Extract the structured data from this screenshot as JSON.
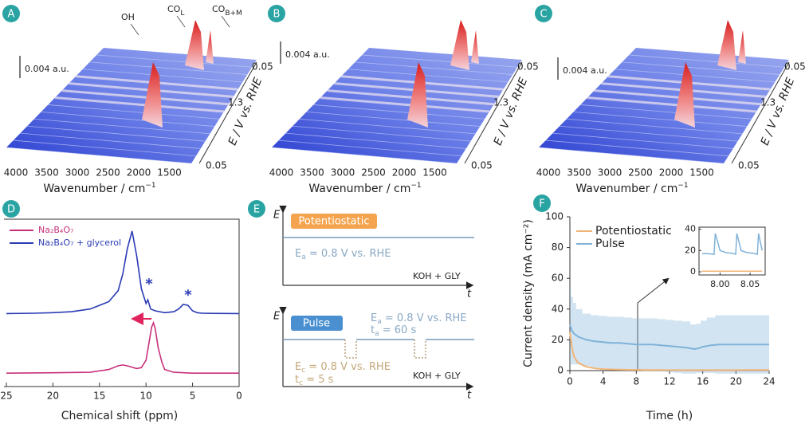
{
  "panels": [
    {
      "label": "A",
      "annotations": [
        {
          "text": "OH"
        },
        {
          "text": "CO",
          "sub": "L"
        },
        {
          "text": "CO",
          "sub": "B+M"
        }
      ],
      "scale_bar": "0.004 a.u.",
      "x_label": {
        "text": "Wavenumber / cm",
        "sup": "−1"
      },
      "xticks": [
        4000,
        3500,
        3000,
        2500,
        2000,
        1500
      ],
      "potential_label": "E / V vs. RHE",
      "potential_ticks": [
        0.05,
        1.3,
        0.05
      ]
    },
    {
      "label": "B",
      "scale_bar": "0.004 a.u.",
      "x_label": {
        "text": "Wavenumber / cm",
        "sup": "−1"
      },
      "xticks": [
        4000,
        3500,
        3000,
        2500,
        2000,
        1500
      ],
      "potential_label": "E / V vs. RHE",
      "potential_ticks": [
        0.05,
        1.3,
        0.05
      ]
    },
    {
      "label": "C",
      "scale_bar": "0.004 a.u.",
      "x_label": {
        "text": "Wavenumber / cm",
        "sup": "−1"
      },
      "xticks": [
        4000,
        3500,
        3000,
        2500,
        2000,
        1500
      ],
      "potential_label": "E / V vs. RHE",
      "potential_ticks": [
        0.05,
        1.3,
        0.05
      ]
    }
  ],
  "nmr": {
    "label": "D",
    "type": "line",
    "x_label": "Chemical shift (ppm)",
    "xlim": [
      25,
      0
    ],
    "xticks": [
      25,
      20,
      15,
      10,
      5,
      0
    ],
    "ylim": [
      0,
      100
    ],
    "series": [
      {
        "name": "Na₂B₄O₇",
        "color": "#c8307a",
        "x": [
          25,
          20,
          16,
          14,
          13,
          12.5,
          12,
          11,
          10.5,
          10,
          9.7,
          9.4,
          9.2,
          9,
          8.7,
          8.3,
          8,
          7,
          5,
          0
        ],
        "values": [
          16,
          16.2,
          16.5,
          18,
          20,
          20.5,
          20,
          18.5,
          19,
          23,
          32,
          41,
          43.5,
          40,
          30,
          22,
          18,
          16.5,
          16,
          16
        ]
      },
      {
        "name": "Na₂B₄O₇ + glycerol",
        "color": "#2b3bb5",
        "x": [
          25,
          22,
          20,
          18,
          16,
          14,
          13,
          12.5,
          12,
          11.5,
          11,
          10.5,
          10,
          9.8,
          9.5,
          9,
          8,
          7,
          6.5,
          6,
          5.5,
          5,
          4.5,
          4,
          3,
          0
        ],
        "values": [
          48.5,
          48.7,
          49,
          49.5,
          51,
          55,
          61,
          70,
          84,
          93.5,
          80,
          62,
          54,
          56,
          51,
          50,
          49,
          49.5,
          51,
          53.5,
          53,
          50,
          49,
          48.7,
          48.6,
          48.5
        ]
      }
    ],
    "annotations": [
      "*",
      "*"
    ]
  },
  "schematic": {
    "label": "E",
    "potentiostatic": {
      "axis_label": "E",
      "time_label": "t",
      "mode": "Potentiostatic",
      "anodic_potential": {
        "symbol": "E",
        "sub": "a",
        "text": " = 0.8 V vs. RHE"
      },
      "electrolyte": "KOH + GLY"
    },
    "pulse": {
      "axis_label": "E",
      "time_label": "t",
      "mode": "Pulse",
      "anodic_potential": {
        "symbol": "E",
        "sub": "a",
        "text": " = 0.8 V vs. RHE"
      },
      "anodic_time": {
        "symbol": "t",
        "sub": "a",
        "text": " = 60 s"
      },
      "cathodic_potential": {
        "symbol": "E",
        "sub": "c",
        "text": " = 0.8 V vs. RHE"
      },
      "cathodic_time": {
        "symbol": "t",
        "sub": "c",
        "text": " = 5 s"
      },
      "electrolyte": "KOH + GLY"
    }
  },
  "current": {
    "label": "F",
    "type": "line",
    "x_label": "Time (h)",
    "y_label": "Current density (mA cm⁻²)",
    "xlim": [
      0,
      24
    ],
    "xticks": [
      0,
      4,
      8,
      12,
      16,
      20,
      24
    ],
    "ylim": [
      0,
      100
    ],
    "yticks": [
      0,
      20,
      40,
      60,
      80,
      100
    ],
    "x": [
      0,
      0.25,
      0.5,
      1,
      2,
      3,
      4,
      5,
      6,
      7,
      8,
      9,
      10,
      11,
      12,
      13,
      14,
      15,
      15.5,
      16,
      17,
      18,
      19,
      20,
      21,
      22,
      23,
      24
    ],
    "series": [
      {
        "name": "Potentiostatic",
        "color": "#f0b478",
        "values": [
          25,
          15,
          9,
          5,
          2.5,
          1.5,
          1,
          0.8,
          0.6,
          0.5,
          0.5,
          0.4,
          0.4,
          0.4,
          0.3,
          0.3,
          0.3,
          0.3,
          0.3,
          0.3,
          0.3,
          0.3,
          0.3,
          0.3,
          0.4,
          0.4,
          0.4,
          0.4
        ]
      },
      {
        "name": "Pulse",
        "color": "#7fb2d8",
        "values": [
          30,
          26,
          24,
          22,
          20,
          19,
          18.5,
          18,
          18,
          17.5,
          17,
          17,
          17,
          16.5,
          16,
          15.5,
          15,
          14,
          14.5,
          15.5,
          16.5,
          17,
          17,
          17,
          17,
          17,
          17,
          17
        ],
        "errors": [
          25,
          22,
          20,
          18,
          17,
          17,
          17,
          17,
          17,
          17,
          17,
          17,
          17,
          17,
          17,
          17,
          17,
          16,
          16,
          17,
          18,
          19,
          19,
          19,
          19,
          19,
          19,
          19
        ]
      }
    ],
    "inset": {
      "xlim": [
        7.965,
        8.075
      ],
      "xticks": [
        {
          "value": 8,
          "label": "8.00"
        },
        8.05
      ],
      "ylim": [
        -3,
        42
      ],
      "yticks": [
        0,
        20,
        40
      ],
      "x": [
        7.97,
        7.98,
        7.99,
        7.992,
        8.0,
        8.01,
        8.02,
        8.026,
        8.028,
        8.035,
        8.045,
        8.055,
        8.062,
        8.064,
        8.07
      ],
      "series": [
        {
          "color": "#f0b478",
          "values": [
            0.5,
            0.5,
            0.5,
            0.5,
            0.5,
            0.5,
            0.5,
            0.5,
            0.5,
            0.5,
            0.5,
            0.5,
            0.5,
            0.5,
            0.5
          ]
        },
        {
          "color": "#7fb2d8",
          "values": [
            17,
            17,
            16.5,
            36,
            20,
            18,
            17.5,
            16.5,
            36,
            20,
            18,
            17.5,
            16.5,
            36,
            20
          ]
        }
      ]
    }
  }
}
